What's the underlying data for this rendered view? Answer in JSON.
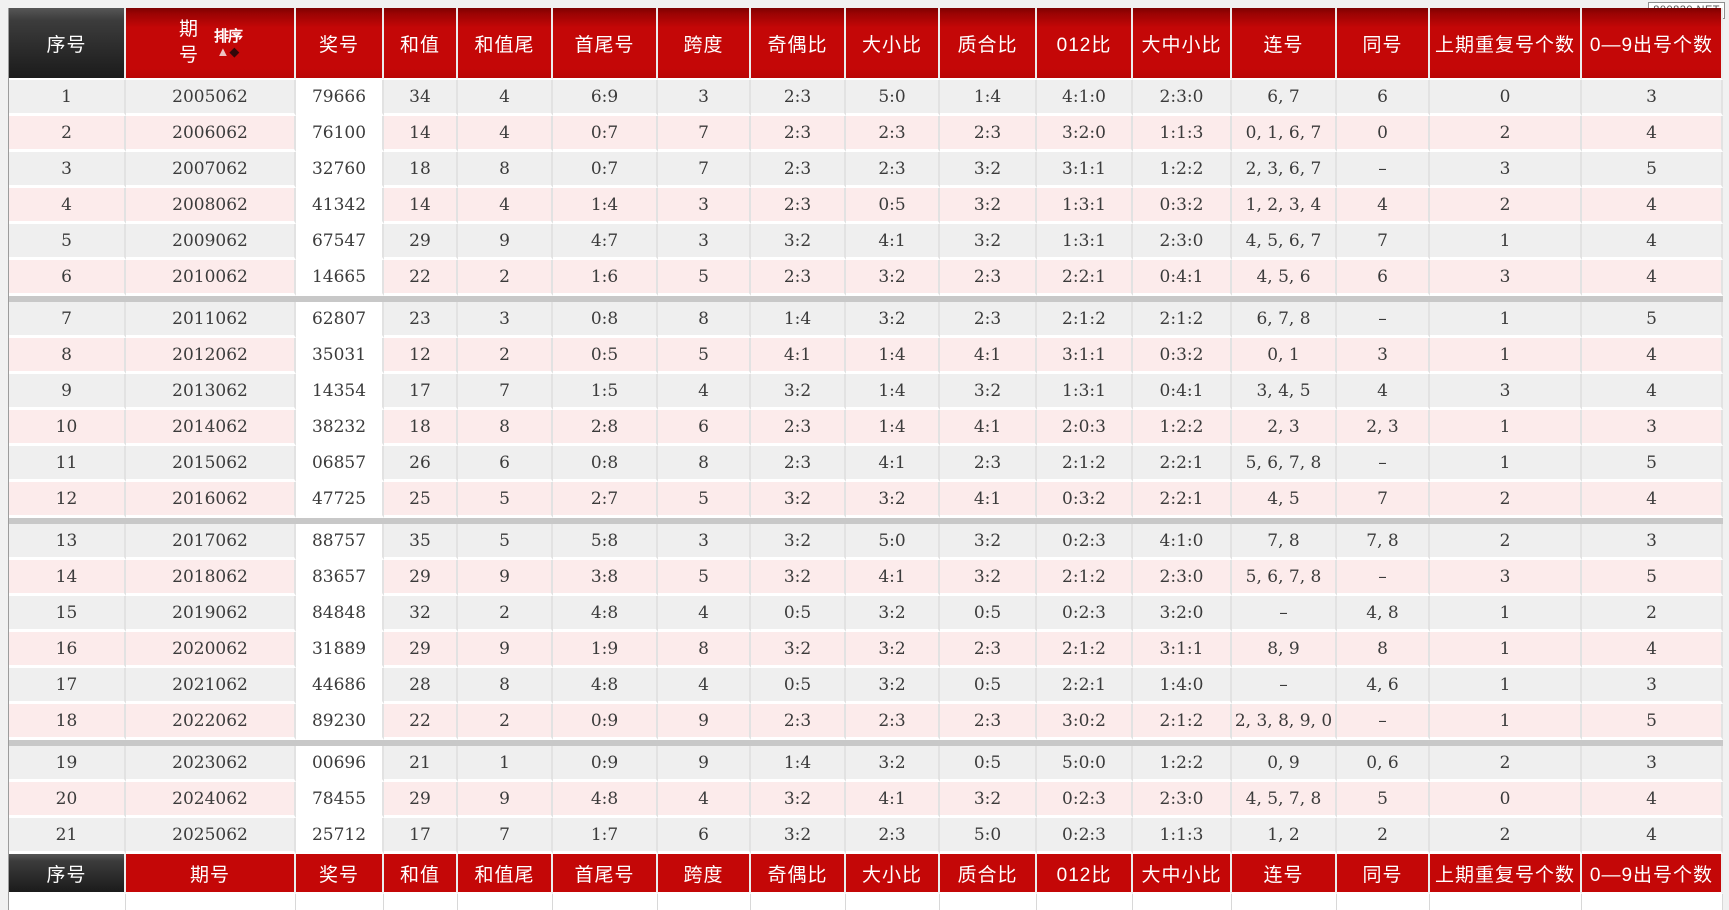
{
  "watermark": "800820.NET",
  "table": {
    "sort_label": "排序",
    "headers": [
      "序号",
      "期号",
      "奖号",
      "和值",
      "和值尾",
      "首尾号",
      "跨度",
      "奇偶比",
      "大小比",
      "质合比",
      "012比",
      "大中小比",
      "连号",
      "同号",
      "上期重复号个数",
      "0—9出号个数"
    ],
    "rows": [
      [
        "1",
        "2005062",
        "79666",
        "34",
        "4",
        "6:9",
        "3",
        "2:3",
        "5:0",
        "1:4",
        "4:1:0",
        "2:3:0",
        "6, 7",
        "6",
        "0",
        "3"
      ],
      [
        "2",
        "2006062",
        "76100",
        "14",
        "4",
        "0:7",
        "7",
        "2:3",
        "2:3",
        "2:3",
        "3:2:0",
        "1:1:3",
        "0, 1, 6, 7",
        "0",
        "2",
        "4"
      ],
      [
        "3",
        "2007062",
        "32760",
        "18",
        "8",
        "0:7",
        "7",
        "2:3",
        "2:3",
        "3:2",
        "3:1:1",
        "1:2:2",
        "2, 3, 6, 7",
        "–",
        "3",
        "5"
      ],
      [
        "4",
        "2008062",
        "41342",
        "14",
        "4",
        "1:4",
        "3",
        "2:3",
        "0:5",
        "3:2",
        "1:3:1",
        "0:3:2",
        "1, 2, 3, 4",
        "4",
        "2",
        "4"
      ],
      [
        "5",
        "2009062",
        "67547",
        "29",
        "9",
        "4:7",
        "3",
        "3:2",
        "4:1",
        "3:2",
        "1:3:1",
        "2:3:0",
        "4, 5, 6, 7",
        "7",
        "1",
        "4"
      ],
      [
        "6",
        "2010062",
        "14665",
        "22",
        "2",
        "1:6",
        "5",
        "2:3",
        "3:2",
        "2:3",
        "2:2:1",
        "0:4:1",
        "4, 5, 6",
        "6",
        "3",
        "4"
      ],
      [
        "7",
        "2011062",
        "62807",
        "23",
        "3",
        "0:8",
        "8",
        "1:4",
        "3:2",
        "2:3",
        "2:1:2",
        "2:1:2",
        "6, 7, 8",
        "–",
        "1",
        "5"
      ],
      [
        "8",
        "2012062",
        "35031",
        "12",
        "2",
        "0:5",
        "5",
        "4:1",
        "1:4",
        "4:1",
        "3:1:1",
        "0:3:2",
        "0, 1",
        "3",
        "1",
        "4"
      ],
      [
        "9",
        "2013062",
        "14354",
        "17",
        "7",
        "1:5",
        "4",
        "3:2",
        "1:4",
        "3:2",
        "1:3:1",
        "0:4:1",
        "3, 4, 5",
        "4",
        "3",
        "4"
      ],
      [
        "10",
        "2014062",
        "38232",
        "18",
        "8",
        "2:8",
        "6",
        "2:3",
        "1:4",
        "4:1",
        "2:0:3",
        "1:2:2",
        "2, 3",
        "2, 3",
        "1",
        "3"
      ],
      [
        "11",
        "2015062",
        "06857",
        "26",
        "6",
        "0:8",
        "8",
        "2:3",
        "4:1",
        "2:3",
        "2:1:2",
        "2:2:1",
        "5, 6, 7, 8",
        "–",
        "1",
        "5"
      ],
      [
        "12",
        "2016062",
        "47725",
        "25",
        "5",
        "2:7",
        "5",
        "3:2",
        "3:2",
        "4:1",
        "0:3:2",
        "2:2:1",
        "4, 5",
        "7",
        "2",
        "4"
      ],
      [
        "13",
        "2017062",
        "88757",
        "35",
        "5",
        "5:8",
        "3",
        "3:2",
        "5:0",
        "3:2",
        "0:2:3",
        "4:1:0",
        "7, 8",
        "7, 8",
        "2",
        "3"
      ],
      [
        "14",
        "2018062",
        "83657",
        "29",
        "9",
        "3:8",
        "5",
        "3:2",
        "4:1",
        "3:2",
        "2:1:2",
        "2:3:0",
        "5, 6, 7, 8",
        "–",
        "3",
        "5"
      ],
      [
        "15",
        "2019062",
        "84848",
        "32",
        "2",
        "4:8",
        "4",
        "0:5",
        "3:2",
        "0:5",
        "0:2:3",
        "3:2:0",
        "–",
        "4, 8",
        "1",
        "2"
      ],
      [
        "16",
        "2020062",
        "31889",
        "29",
        "9",
        "1:9",
        "8",
        "3:2",
        "3:2",
        "2:3",
        "2:1:2",
        "3:1:1",
        "8, 9",
        "8",
        "1",
        "4"
      ],
      [
        "17",
        "2021062",
        "44686",
        "28",
        "8",
        "4:8",
        "4",
        "0:5",
        "3:2",
        "0:5",
        "2:2:1",
        "1:4:0",
        "–",
        "4, 6",
        "1",
        "3"
      ],
      [
        "18",
        "2022062",
        "89230",
        "22",
        "2",
        "0:9",
        "9",
        "2:3",
        "2:3",
        "2:3",
        "3:0:2",
        "2:1:2",
        "2, 3, 8, 9, 0",
        "–",
        "1",
        "5"
      ],
      [
        "19",
        "2023062",
        "00696",
        "21",
        "1",
        "0:9",
        "9",
        "1:4",
        "3:2",
        "0:5",
        "5:0:0",
        "1:2:2",
        "0, 9",
        "0, 6",
        "2",
        "3"
      ],
      [
        "20",
        "2024062",
        "78455",
        "29",
        "9",
        "4:8",
        "4",
        "3:2",
        "4:1",
        "3:2",
        "0:2:3",
        "2:3:0",
        "4, 5, 7, 8",
        "5",
        "0",
        "4"
      ],
      [
        "21",
        "2025062",
        "25712",
        "17",
        "7",
        "1:7",
        "6",
        "3:2",
        "2:3",
        "5:0",
        "0:2:3",
        "1:1:3",
        "1, 2",
        "2",
        "2",
        "4"
      ]
    ]
  }
}
